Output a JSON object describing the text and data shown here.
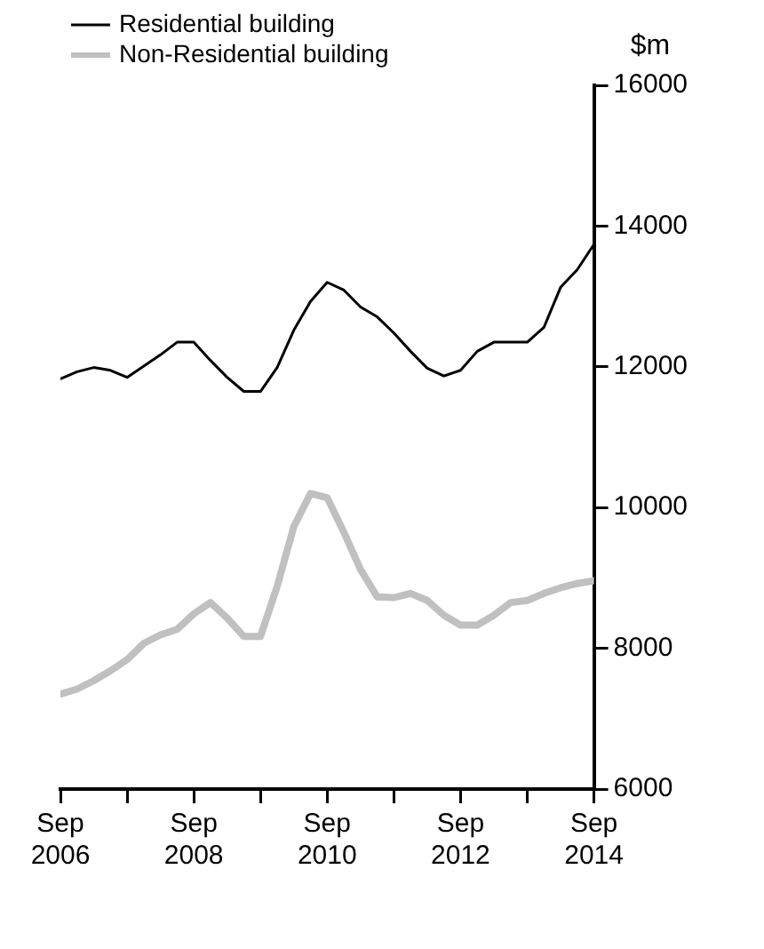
{
  "chart_data": {
    "type": "line",
    "ylabel": "$m",
    "x": [
      "2006-09",
      "2006-12",
      "2007-03",
      "2007-06",
      "2007-09",
      "2007-12",
      "2008-03",
      "2008-06",
      "2008-09",
      "2008-12",
      "2009-03",
      "2009-06",
      "2009-09",
      "2009-12",
      "2010-03",
      "2010-06",
      "2010-09",
      "2010-12",
      "2011-03",
      "2011-06",
      "2011-09",
      "2011-12",
      "2012-03",
      "2012-06",
      "2012-09",
      "2012-12",
      "2013-03",
      "2013-06",
      "2013-09",
      "2013-12",
      "2014-03",
      "2014-06",
      "2014-09"
    ],
    "series": [
      {
        "name": "Residential building",
        "color": "#000000",
        "values": [
          11830,
          11930,
          11990,
          11950,
          11850,
          12010,
          12170,
          12350,
          12350,
          12090,
          11850,
          11650,
          11650,
          11990,
          12520,
          12930,
          13200,
          13090,
          12850,
          12710,
          12480,
          12220,
          11980,
          11870,
          11950,
          12220,
          12350,
          12350,
          12350,
          12560,
          13130,
          13380,
          13740
        ]
      },
      {
        "name": "Non-Residential building",
        "color": "#c0c0c0",
        "values": [
          7350,
          7420,
          7540,
          7680,
          7840,
          8070,
          8190,
          8270,
          8490,
          8650,
          8430,
          8170,
          8170,
          8880,
          9730,
          10200,
          10140,
          9650,
          9120,
          8730,
          8720,
          8780,
          8680,
          8470,
          8330,
          8330,
          8470,
          8650,
          8680,
          8780,
          8860,
          8920,
          8960
        ]
      }
    ],
    "xlim": [
      "2006-09",
      "2014-09"
    ],
    "xticks": [
      {
        "value": "2006-09",
        "label": "Sep 2006"
      },
      {
        "value": "2007-09",
        "label": null
      },
      {
        "value": "2008-09",
        "label": "Sep 2008"
      },
      {
        "value": "2009-09",
        "label": null
      },
      {
        "value": "2010-09",
        "label": "Sep 2010"
      },
      {
        "value": "2011-09",
        "label": null
      },
      {
        "value": "2012-09",
        "label": "Sep 2012"
      },
      {
        "value": "2013-09",
        "label": null
      },
      {
        "value": "2014-09",
        "label": "Sep 2014"
      }
    ],
    "ylim": [
      6000,
      16000
    ],
    "yticks": [
      6000,
      8000,
      10000,
      12000,
      14000,
      16000
    ],
    "grid": false,
    "legend": "top left",
    "marker": "none",
    "line_style": "solid"
  }
}
